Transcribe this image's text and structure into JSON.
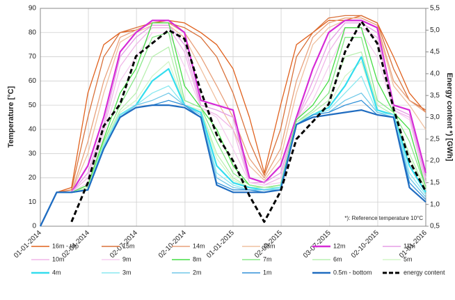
{
  "chart_data": {
    "type": "line",
    "y_label": "Temperature [°C]",
    "y2_label": "Energy content *) [GWh]",
    "annotation": "*): Reference temperature 10°C",
    "x": [
      "01-01-2014",
      "01-02-2014",
      "01-03-2014",
      "01-04-2014",
      "01-05-2014",
      "01-06-2014",
      "01-07-2014",
      "01-08-2014",
      "01-09-2014",
      "01-10-2014",
      "01-11-2014",
      "01-12-2014",
      "01-01-2015",
      "01-02-2015",
      "01-03-2015",
      "01-04-2015",
      "01-05-2015",
      "01-06-2015",
      "01-07-2015",
      "01-08-2015",
      "01-09-2015",
      "01-10-2015",
      "01-11-2015",
      "01-12-2015",
      "01-01-2016"
    ],
    "xlim": [
      "01-01-2014",
      "01-01-2016"
    ],
    "xticks": [
      "01-01-2014",
      "02-04-2014",
      "02-07-2014",
      "02-10-2014",
      "01-01-2015",
      "02-04-2015",
      "03-07-2015",
      "02-10-2015",
      "01-01-2016"
    ],
    "ylim": [
      0,
      90
    ],
    "yticks": [
      0,
      10,
      20,
      30,
      40,
      50,
      60,
      70,
      80,
      90
    ],
    "y2lim": [
      0.5,
      5.5
    ],
    "y2ticks": [
      {
        "value": 0.5,
        "label": "0,5"
      },
      {
        "value": 1.0,
        "label": "1,0"
      },
      {
        "value": 1.5,
        "label": "1,5"
      },
      {
        "value": 2.0,
        "label": "2,0"
      },
      {
        "value": 2.5,
        "label": "2,5"
      },
      {
        "value": 3.0,
        "label": "3,0"
      },
      {
        "value": 3.5,
        "label": "3,5"
      },
      {
        "value": 4.0,
        "label": "4,0"
      },
      {
        "value": 4.5,
        "label": "4,5"
      },
      {
        "value": 5.0,
        "label": "5,0"
      },
      {
        "value": 5.5,
        "label": "5,5"
      }
    ],
    "grid": true,
    "legend": "bottom",
    "series": [
      {
        "name": "16m - top",
        "color": "#e0601c",
        "values": [
          0,
          14,
          16,
          55,
          75,
          80,
          81,
          84,
          85,
          84,
          80,
          75,
          65,
          45,
          22,
          50,
          75,
          80,
          85,
          85,
          87,
          84,
          70,
          55,
          47
        ]
      },
      {
        "name": "15m",
        "color": "#d9713a",
        "values": [
          0,
          14,
          15,
          45,
          70,
          80,
          82,
          84,
          84,
          82,
          78,
          70,
          55,
          35,
          21,
          40,
          70,
          80,
          86,
          87,
          87,
          84,
          65,
          52,
          48
        ]
      },
      {
        "name": "14m",
        "color": "#e8a07a",
        "values": [
          0,
          14,
          14,
          35,
          60,
          78,
          81,
          84,
          84,
          80,
          70,
          58,
          45,
          28,
          20,
          32,
          60,
          78,
          84,
          86,
          86,
          83,
          60,
          52,
          47
        ]
      },
      {
        "name": "13m",
        "color": "#efc0a0",
        "values": [
          0,
          14,
          14,
          30,
          55,
          76,
          80,
          83,
          83,
          78,
          65,
          52,
          40,
          25,
          19,
          28,
          55,
          75,
          82,
          85,
          85,
          82,
          58,
          50,
          40
        ]
      },
      {
        "name": "12m",
        "color": "#d62ad6",
        "values": [
          0,
          14,
          14,
          25,
          45,
          72,
          80,
          85,
          85,
          80,
          52,
          50,
          48,
          20,
          18,
          25,
          45,
          65,
          80,
          85,
          85,
          82,
          50,
          48,
          22
        ]
      },
      {
        "name": "11m",
        "color": "#e59ee5",
        "values": [
          0,
          14,
          14,
          22,
          42,
          70,
          78,
          83,
          83,
          75,
          50,
          48,
          45,
          18,
          18,
          22,
          44,
          60,
          76,
          84,
          84,
          80,
          49,
          46,
          20
        ]
      },
      {
        "name": "10m",
        "color": "#f0b6e8",
        "values": [
          0,
          14,
          14,
          20,
          40,
          66,
          75,
          82,
          82,
          72,
          49,
          46,
          40,
          18,
          17,
          20,
          44,
          56,
          72,
          82,
          82,
          78,
          48,
          45,
          18
        ]
      },
      {
        "name": "9m",
        "color": "#f5cdf0",
        "values": [
          0,
          14,
          14,
          18,
          38,
          60,
          70,
          80,
          80,
          66,
          49,
          45,
          32,
          18,
          17,
          18,
          44,
          52,
          66,
          80,
          80,
          70,
          48,
          44,
          17
        ]
      },
      {
        "name": "8m",
        "color": "#44dd44",
        "values": [
          0,
          14,
          14,
          17,
          36,
          55,
          65,
          84,
          84,
          58,
          49,
          40,
          25,
          17,
          16,
          17,
          44,
          50,
          60,
          82,
          82,
          60,
          47,
          40,
          16
        ]
      },
      {
        "name": "7m",
        "color": "#88e888",
        "values": [
          0,
          14,
          14,
          16,
          35,
          50,
          62,
          78,
          80,
          52,
          49,
          35,
          22,
          17,
          16,
          17,
          43,
          48,
          55,
          78,
          78,
          52,
          47,
          35,
          16
        ]
      },
      {
        "name": "6m",
        "color": "#b8f0b0",
        "values": [
          0,
          14,
          14,
          16,
          34,
          48,
          55,
          70,
          74,
          50,
          48,
          30,
          20,
          16,
          16,
          16,
          43,
          47,
          52,
          70,
          72,
          50,
          46,
          30,
          15
        ]
      },
      {
        "name": "5m",
        "color": "#d4f5c8",
        "values": [
          0,
          14,
          14,
          15,
          34,
          47,
          52,
          62,
          68,
          50,
          48,
          28,
          19,
          16,
          15,
          16,
          43,
          46,
          50,
          62,
          68,
          48,
          46,
          28,
          15
        ]
      },
      {
        "name": "4m",
        "color": "#33ddee",
        "values": [
          0,
          14,
          14,
          15,
          33,
          46,
          50,
          60,
          65,
          50,
          47,
          25,
          18,
          16,
          15,
          16,
          42,
          46,
          49,
          58,
          70,
          48,
          46,
          25,
          14
        ]
      },
      {
        "name": "3m",
        "color": "#88e8f0",
        "values": [
          0,
          14,
          14,
          15,
          33,
          46,
          50,
          55,
          58,
          50,
          46,
          22,
          17,
          15,
          15,
          16,
          42,
          46,
          48,
          55,
          62,
          47,
          46,
          22,
          13
        ]
      },
      {
        "name": "2m",
        "color": "#70c8e8",
        "values": [
          0,
          14,
          14,
          15,
          32,
          45,
          50,
          52,
          55,
          50,
          46,
          20,
          16,
          15,
          15,
          15,
          42,
          46,
          47,
          52,
          55,
          47,
          45,
          20,
          12
        ]
      },
      {
        "name": "1m",
        "color": "#3090d8",
        "values": [
          0,
          14,
          14,
          15,
          32,
          45,
          49,
          50,
          52,
          50,
          45,
          18,
          15,
          15,
          14,
          15,
          42,
          46,
          47,
          50,
          52,
          46,
          45,
          18,
          11
        ]
      },
      {
        "name": "0.5m - bottom",
        "color": "#1f6cc0",
        "values": [
          0,
          14,
          14,
          15,
          32,
          45,
          49,
          50,
          50,
          49,
          45,
          17,
          14,
          14,
          14,
          15,
          42,
          45,
          46,
          47,
          48,
          46,
          45,
          16,
          10
        ]
      },
      {
        "name": "energy content",
        "color": "#000000",
        "axis": "y2",
        "dashed": true,
        "values": [
          null,
          null,
          0.6,
          1.5,
          2.8,
          3.3,
          4.4,
          4.7,
          5.0,
          4.8,
          3.6,
          2.6,
          2.0,
          1.2,
          0.6,
          1.3,
          2.5,
          2.9,
          3.3,
          4.5,
          5.2,
          4.7,
          3.2,
          2.0,
          1.3
        ]
      }
    ]
  }
}
